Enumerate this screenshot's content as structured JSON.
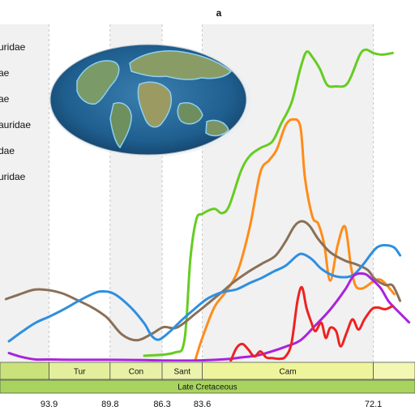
{
  "chart_data": {
    "type": "line",
    "title": "a",
    "x_unit": "Ma",
    "xlim": [
      97.2,
      69.3
    ],
    "ylim": [
      0,
      100
    ],
    "grid": "vertical dashed at stage boundaries",
    "legend_position": "top-left",
    "stage_boundaries": [
      {
        "age": 93.9,
        "label": "93.9"
      },
      {
        "age": 89.8,
        "label": "89.8"
      },
      {
        "age": 86.3,
        "label": "86.3"
      },
      {
        "age": 83.6,
        "label": "83.6"
      },
      {
        "age": 72.1,
        "label": "72.1"
      }
    ],
    "stages": [
      {
        "name": "",
        "from": 97.2,
        "to": 93.9,
        "color": "#c9e27a"
      },
      {
        "name": "Tur",
        "from": 93.9,
        "to": 89.8,
        "color": "#e4ef9e"
      },
      {
        "name": "Con",
        "from": 89.8,
        "to": 86.3,
        "color": "#e8f1a6"
      },
      {
        "name": "Sant",
        "from": 86.3,
        "to": 83.6,
        "color": "#ecf3ad"
      },
      {
        "name": "Cam",
        "from": 83.6,
        "to": 72.1,
        "color": "#eef49b"
      },
      {
        "name": "",
        "from": 72.1,
        "to": 69.3,
        "color": "#f2f7b4"
      }
    ],
    "epoch": {
      "name": "Late Cretaceous",
      "color": "#a8d45e"
    },
    "stage_shading": [
      {
        "from": 97.2,
        "to": 93.9
      },
      {
        "from": 89.8,
        "to": 86.3
      },
      {
        "from": 83.6,
        "to": 72.1
      }
    ],
    "legend": [
      "uridae",
      "ae",
      "ae",
      "auridae",
      "dae",
      "uridae"
    ],
    "series": [
      {
        "color": "#66cc22",
        "points": [
          [
            87.5,
            1.7
          ],
          [
            85.5,
            2.6
          ],
          [
            84.8,
            6.4
          ],
          [
            84.4,
            30.5
          ],
          [
            84.0,
            42.1
          ],
          [
            83.6,
            43.8
          ],
          [
            82.8,
            45.3
          ],
          [
            82.3,
            44.0
          ],
          [
            81.8,
            46.1
          ],
          [
            81.0,
            56.5
          ],
          [
            80.4,
            61.0
          ],
          [
            79.7,
            63.3
          ],
          [
            78.9,
            65.2
          ],
          [
            78.3,
            70.5
          ],
          [
            77.6,
            76.8
          ],
          [
            77.0,
            87.0
          ],
          [
            76.6,
            91.8
          ],
          [
            76.2,
            90.3
          ],
          [
            75.7,
            86.8
          ],
          [
            75.2,
            82.0
          ],
          [
            74.6,
            81.6
          ],
          [
            74.0,
            81.8
          ],
          [
            73.6,
            84.5
          ],
          [
            73.0,
            91.0
          ],
          [
            72.6,
            92.5
          ],
          [
            72.1,
            91.5
          ],
          [
            71.5,
            91.0
          ],
          [
            70.8,
            91.5
          ]
        ]
      },
      {
        "color": "#ff8c1a",
        "points": [
          [
            84.1,
            0
          ],
          [
            83.6,
            7.0
          ],
          [
            82.8,
            16.0
          ],
          [
            82.0,
            20.8
          ],
          [
            81.2,
            27.0
          ],
          [
            80.4,
            40.0
          ],
          [
            79.7,
            56.0
          ],
          [
            79.1,
            59.7
          ],
          [
            78.6,
            62.8
          ],
          [
            78.0,
            70.0
          ],
          [
            77.5,
            71.8
          ],
          [
            77.0,
            69.5
          ],
          [
            76.7,
            54.5
          ],
          [
            76.2,
            43.0
          ],
          [
            75.8,
            40.8
          ],
          [
            75.4,
            34.6
          ],
          [
            75.0,
            24.0
          ],
          [
            74.5,
            34.5
          ],
          [
            74.0,
            40.0
          ],
          [
            73.6,
            28.0
          ],
          [
            73.3,
            22.5
          ],
          [
            72.9,
            21.6
          ],
          [
            72.5,
            22.5
          ],
          [
            72.0,
            24.0
          ],
          [
            71.5,
            24.0
          ],
          [
            70.7,
            20.0
          ]
        ]
      },
      {
        "color": "#8a7058",
        "points": [
          [
            96.8,
            18.5
          ],
          [
            95.9,
            19.9
          ],
          [
            94.9,
            21.3
          ],
          [
            94.0,
            21.2
          ],
          [
            93.0,
            20.2
          ],
          [
            92.0,
            18.2
          ],
          [
            91.0,
            16.0
          ],
          [
            90.0,
            13.0
          ],
          [
            89.0,
            8.0
          ],
          [
            88.0,
            6.3
          ],
          [
            87.0,
            8.2
          ],
          [
            86.2,
            10.2
          ],
          [
            85.3,
            10.1
          ],
          [
            84.0,
            14.4
          ],
          [
            82.5,
            19.8
          ],
          [
            81.5,
            23.5
          ],
          [
            80.5,
            26.6
          ],
          [
            79.6,
            29.0
          ],
          [
            78.7,
            31.3
          ],
          [
            78.0,
            35.6
          ],
          [
            77.4,
            40.2
          ],
          [
            76.9,
            41.6
          ],
          [
            76.4,
            40.3
          ],
          [
            75.8,
            36.3
          ],
          [
            75.0,
            32.4
          ],
          [
            74.0,
            29.9
          ],
          [
            73.3,
            28.9
          ],
          [
            72.5,
            27.2
          ],
          [
            72.0,
            24.5
          ],
          [
            71.3,
            22.7
          ],
          [
            70.8,
            22.5
          ],
          [
            70.3,
            18.0
          ]
        ]
      },
      {
        "color": "#2e8fe0",
        "points": [
          [
            96.6,
            6.0
          ],
          [
            95.7,
            8.9
          ],
          [
            94.8,
            11.5
          ],
          [
            93.9,
            13.3
          ],
          [
            92.9,
            15.5
          ],
          [
            91.9,
            18.0
          ],
          [
            90.9,
            20.2
          ],
          [
            90.3,
            20.8
          ],
          [
            89.5,
            20.0
          ],
          [
            88.4,
            16.0
          ],
          [
            87.5,
            11.3
          ],
          [
            87.0,
            7.6
          ],
          [
            86.5,
            6.5
          ],
          [
            85.8,
            8.8
          ],
          [
            85.0,
            12.2
          ],
          [
            84.2,
            15.3
          ],
          [
            83.3,
            18.5
          ],
          [
            82.3,
            20.5
          ],
          [
            81.3,
            21.4
          ],
          [
            80.4,
            23.3
          ],
          [
            79.6,
            24.8
          ],
          [
            78.8,
            26.7
          ],
          [
            78.0,
            28.4
          ],
          [
            77.2,
            31.5
          ],
          [
            76.8,
            31.8
          ],
          [
            76.2,
            30.2
          ],
          [
            75.6,
            27.5
          ],
          [
            74.8,
            25.5
          ],
          [
            74.0,
            25.0
          ],
          [
            73.4,
            25.8
          ],
          [
            72.8,
            28.7
          ],
          [
            72.2,
            32.2
          ],
          [
            71.8,
            34.0
          ],
          [
            71.3,
            34.5
          ],
          [
            70.7,
            33.8
          ],
          [
            70.3,
            31.5
          ]
        ]
      },
      {
        "color": "#aa22dd",
        "points": [
          [
            96.6,
            2.5
          ],
          [
            95.7,
            1.3
          ],
          [
            94.8,
            0.6
          ],
          [
            93.9,
            0.6
          ],
          [
            92.0,
            0.5
          ],
          [
            89.8,
            0.5
          ],
          [
            87.5,
            0.4
          ],
          [
            86.0,
            0.3
          ],
          [
            84.0,
            0.3
          ],
          [
            82.0,
            0.7
          ],
          [
            81.0,
            1.2
          ],
          [
            80.0,
            1.7
          ],
          [
            79.0,
            2.9
          ],
          [
            78.0,
            4.4
          ],
          [
            77.0,
            6.3
          ],
          [
            76.0,
            10.7
          ],
          [
            75.0,
            15.4
          ],
          [
            74.0,
            21.3
          ],
          [
            73.4,
            25.5
          ],
          [
            72.7,
            26.0
          ],
          [
            72.2,
            24.4
          ],
          [
            71.6,
            21.7
          ],
          [
            71.1,
            18.0
          ],
          [
            70.6,
            15.6
          ],
          [
            70.1,
            13.4
          ],
          [
            69.7,
            11.6
          ]
        ]
      },
      {
        "color": "#ee2222",
        "points": [
          [
            81.7,
            0
          ],
          [
            81.3,
            4.0
          ],
          [
            80.9,
            5.2
          ],
          [
            80.5,
            3.5
          ],
          [
            80.1,
            1.5
          ],
          [
            79.7,
            3.0
          ],
          [
            79.3,
            1.2
          ],
          [
            78.9,
            1.0
          ],
          [
            78.4,
            0.8
          ],
          [
            78.0,
            1.5
          ],
          [
            77.6,
            5.5
          ],
          [
            77.2,
            18.0
          ],
          [
            76.9,
            22.0
          ],
          [
            76.6,
            16.0
          ],
          [
            76.3,
            12.0
          ],
          [
            76.0,
            9.0
          ],
          [
            75.6,
            11.5
          ],
          [
            75.3,
            7.0
          ],
          [
            75.0,
            10.0
          ],
          [
            74.6,
            9.0
          ],
          [
            74.3,
            4.5
          ],
          [
            73.9,
            8.5
          ],
          [
            73.5,
            12.5
          ],
          [
            73.1,
            9.5
          ],
          [
            72.7,
            12.5
          ],
          [
            72.2,
            15.5
          ],
          [
            71.8,
            16.0
          ],
          [
            71.3,
            15.5
          ],
          [
            70.8,
            16.5
          ]
        ]
      }
    ]
  },
  "map_inset": {
    "caption": ""
  }
}
